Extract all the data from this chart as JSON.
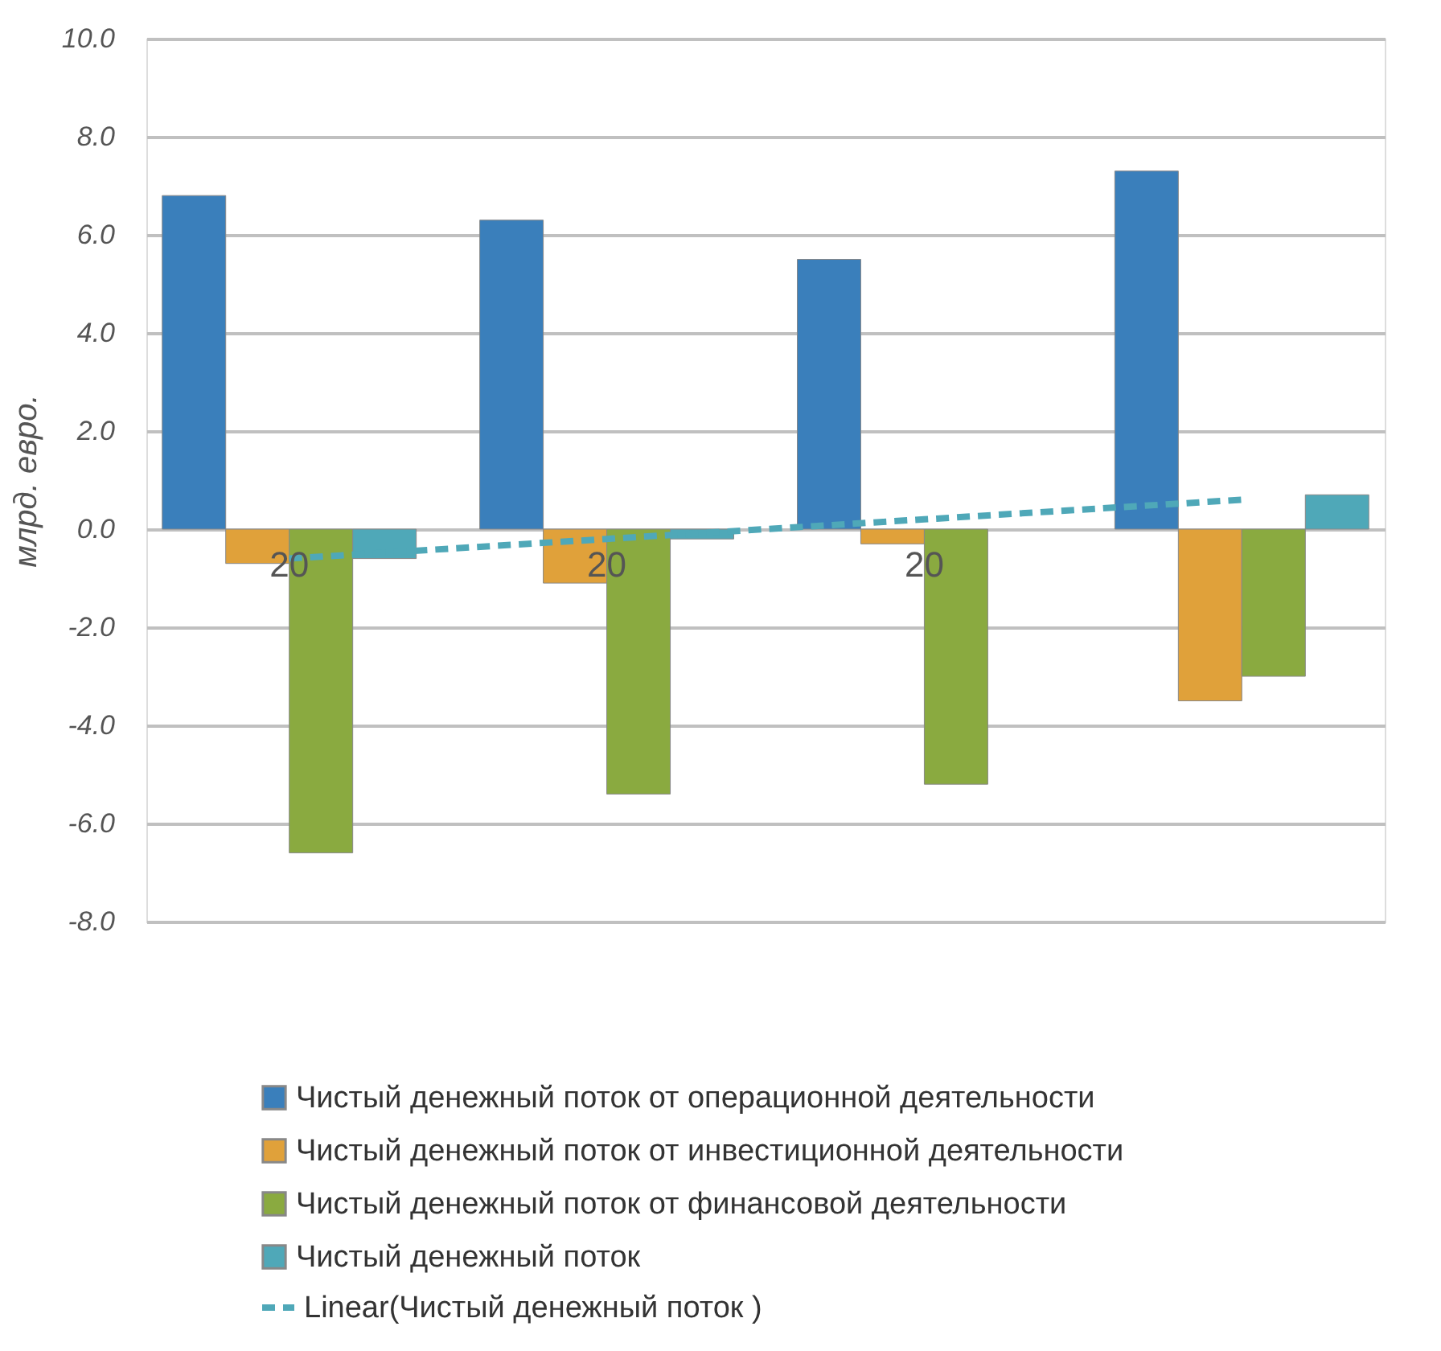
{
  "chart_data": {
    "type": "bar",
    "ylabel": "млрд. евро.",
    "categories": [
      "20",
      "20",
      "20",
      null
    ],
    "series": [
      {
        "name": "Чистый денежный поток от операционной деятельности",
        "color": "#3a7fbb",
        "values": [
          6.8,
          6.3,
          5.5,
          7.3
        ]
      },
      {
        "name": "Чистый денежный поток от инвестиционной деятельности",
        "color": "#e0a13a",
        "values": [
          -0.7,
          -1.1,
          -0.3,
          -3.5
        ]
      },
      {
        "name": "Чистый денежный поток от финансовой деятельности",
        "color": "#8aaa40",
        "values": [
          -6.6,
          -5.4,
          -5.2,
          -3.0
        ]
      },
      {
        "name": "Чистый денежный поток",
        "color": "#4fa8b8",
        "values": [
          -0.6,
          -0.2,
          null,
          0.7
        ]
      },
      {
        "name": "Linear(Чистый денежный поток )",
        "type": "line",
        "line_style": "dashed",
        "marker": "none",
        "color": "#4fa8b8",
        "values": [
          -0.6,
          -0.2,
          0.2,
          0.6
        ]
      }
    ],
    "ylim": [
      -8,
      10
    ],
    "yticks": [
      {
        "value": -8,
        "label": "-8.0"
      },
      {
        "value": -6,
        "label": "-6.0"
      },
      {
        "value": -4,
        "label": "-4.0"
      },
      {
        "value": -2,
        "label": "-2.0"
      },
      {
        "value": 0,
        "label": "0.0"
      },
      {
        "value": 2,
        "label": "2.0"
      },
      {
        "value": 4,
        "label": "4.0"
      },
      {
        "value": 6,
        "label": "6.0"
      },
      {
        "value": 8,
        "label": "8.0"
      },
      {
        "value": 10,
        "label": "10.0"
      }
    ],
    "grid": "y",
    "legend": "bottom"
  }
}
